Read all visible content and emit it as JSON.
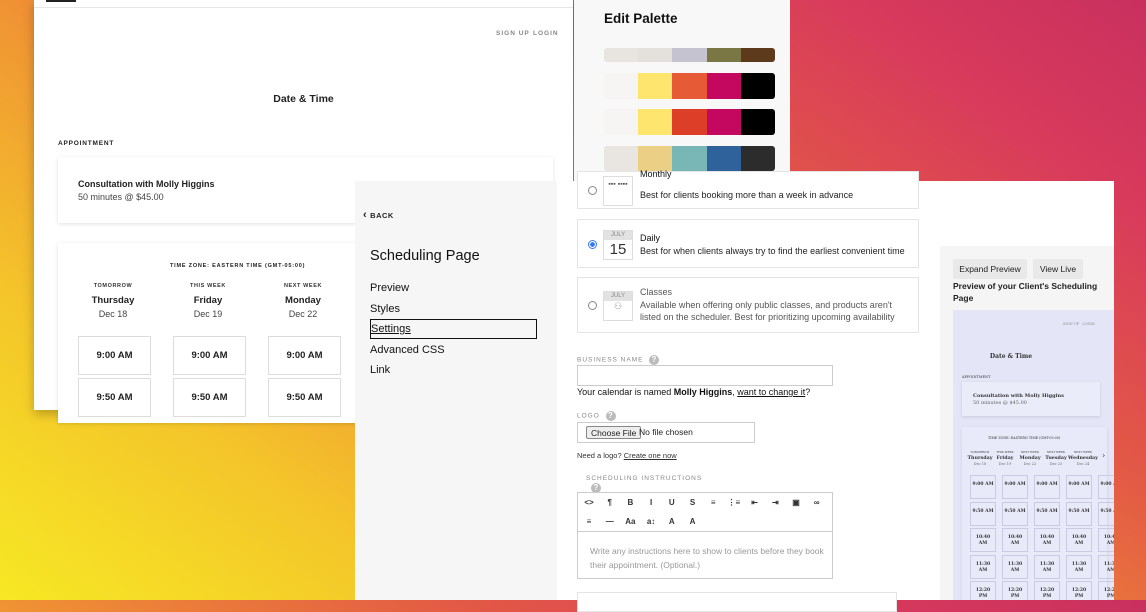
{
  "booking_page": {
    "nav": {
      "sign_up": "SIGN UP",
      "login": "LOGIN"
    },
    "title": "Date & Time",
    "appointment_label": "APPOINTMENT",
    "appointment": {
      "name": "Consultation with Molly Higgins",
      "detail": "50 minutes @ $45.00"
    },
    "timezone": "TIME ZONE: EASTERN TIME (GMT-05:00)",
    "days": [
      {
        "label": "TOMORROW",
        "day": "Thursday",
        "date": "Dec 18"
      },
      {
        "label": "THIS WEEK",
        "day": "Friday",
        "date": "Dec 19"
      },
      {
        "label": "NEXT WEEK",
        "day": "Monday",
        "date": "Dec 22"
      }
    ],
    "times": [
      "9:00 AM",
      "9:50 AM"
    ]
  },
  "palette": {
    "title": "Edit Palette",
    "rows": [
      [
        "#e8e5e1",
        "#e4e0dc",
        "#c4c3cf",
        "#7b7744",
        "#5e3a1c"
      ],
      [
        "#f6f5f3",
        "#fde56e",
        "#e65a36",
        "#c4075f",
        "#000000"
      ],
      [
        "#f6f5f3",
        "#fde56e",
        "#dc3e27",
        "#c4075f",
        "#000000"
      ],
      [
        "#e9e5e0",
        "#ebcf85",
        "#79b6b6",
        "#2f629b",
        "#2c2c2c"
      ]
    ]
  },
  "settings": {
    "back": "BACK",
    "title": "Scheduling Page",
    "nav": [
      "Preview",
      "Styles",
      "Settings",
      "Advanced CSS",
      "Link"
    ],
    "active_nav": "Settings",
    "layout_options": [
      {
        "icon": "calendar-grid-icon",
        "title": "Monthly",
        "desc": "Best for clients booking more than a week in advance",
        "selected": false
      },
      {
        "icon_month": "JULY",
        "icon_day": "15",
        "title": "Daily",
        "desc": "Best for when clients always try to find the earliest convenient time",
        "selected": true
      },
      {
        "icon_month": "JULY",
        "icon": "people-icon",
        "title": "Classes",
        "desc": "Available when offering only public classes, and products aren't listed on the scheduler. Best for prioritizing upcoming availability",
        "selected": false,
        "disabled": true
      }
    ],
    "business_name": {
      "label": "BUSINESS NAME",
      "value": "",
      "note_pre": "Your calendar is named ",
      "note_name": "Molly Higgins",
      "note_sep": ", ",
      "note_link": "want to change it",
      "note_post": "?"
    },
    "logo": {
      "label": "LOGO",
      "button": "Choose File",
      "status": "No file chosen",
      "note": "Need a logo? ",
      "note_link": "Create one now"
    },
    "instructions": {
      "label": "SCHEDULING INSTRUCTIONS",
      "placeholder": "Write any instructions here to show to clients before they book their appointment. (Optional.)",
      "toolbar_row1": [
        "<>",
        "¶",
        "B",
        "I",
        "U",
        "S",
        "≡",
        "⋮≡",
        "⇤",
        "⇥",
        "▣",
        "∞"
      ],
      "toolbar_row2": [
        "≡",
        "—",
        "Aa",
        "a↕",
        "A",
        "A"
      ]
    },
    "help": "?"
  },
  "preview": {
    "expand": "Expand Preview",
    "view_live": "View Live",
    "heading": "Preview of your Client's Scheduling Page",
    "nav": "SIGN UP   LOGIN",
    "title": "Date & Time",
    "appointment_label": "APPOINTMENT",
    "appointment_name": "Consultation with Molly Higgins",
    "appointment_detail": "50 minutes @ $45.00",
    "timezone": "TIME ZONE: EASTERN TIME (GMT-05:00)",
    "days": [
      {
        "label": "TOMORROW",
        "day": "Thursday",
        "date": "Dec 18"
      },
      {
        "label": "THIS WEEK",
        "day": "Friday",
        "date": "Dec 19"
      },
      {
        "label": "NEXT WEEK",
        "day": "Monday",
        "date": "Dec 22"
      },
      {
        "label": "NEXT WEEK",
        "day": "Tuesday",
        "date": "Dec 23"
      },
      {
        "label": "NEXT WEEK",
        "day": "Wednesday",
        "date": "Dec 24"
      }
    ],
    "next": "›",
    "times": [
      "9:00 AM",
      "9:50 AM",
      "10:40 AM",
      "11:30 AM",
      "12:20 PM"
    ]
  },
  "colors": {
    "accent": "#3478f6"
  }
}
